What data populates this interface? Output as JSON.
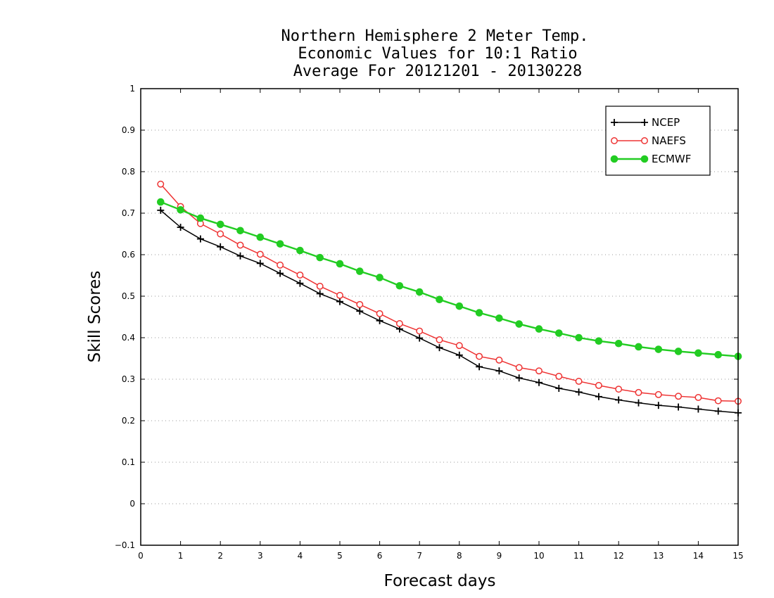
{
  "chart_data": {
    "type": "line",
    "title": [
      "Northern Hemisphere 2 Meter Temp.",
      "Economic Values for 10:1 Ratio",
      "Average For 20121201 - 20130228"
    ],
    "xlabel": "Forecast days",
    "ylabel": "Skill Scores",
    "xlim": [
      0,
      15
    ],
    "ylim": [
      -0.1,
      1
    ],
    "xticks": [
      0,
      1,
      2,
      3,
      4,
      5,
      6,
      7,
      8,
      9,
      10,
      11,
      12,
      13,
      14,
      15
    ],
    "xtick_labels": [
      "0",
      "1",
      "2",
      "3",
      "4",
      "5",
      "6",
      "7",
      "8",
      "9",
      "10",
      "11",
      "12",
      "13",
      "14",
      "15"
    ],
    "yticks": [
      -0.1,
      0,
      0.1,
      0.2,
      0.3,
      0.4,
      0.5,
      0.6,
      0.7,
      0.8,
      0.9,
      1
    ],
    "ytick_labels": [
      "−0.1",
      "0",
      "0.1",
      "0.2",
      "0.3",
      "0.4",
      "0.5",
      "0.6",
      "0.7",
      "0.8",
      "0.9",
      "1"
    ],
    "grid": "horizontal dotted",
    "legend_position": "top-right",
    "x": [
      0.5,
      1,
      1.5,
      2,
      2.5,
      3,
      3.5,
      4,
      4.5,
      5,
      5.5,
      6,
      6.5,
      7,
      7.5,
      8,
      8.5,
      9,
      9.5,
      10,
      10.5,
      11,
      11.5,
      12,
      12.5,
      13,
      13.5,
      14,
      14.5,
      15
    ],
    "series": [
      {
        "name": "NCEP",
        "color": "#000000",
        "marker": "plus",
        "values": [
          0.707,
          0.666,
          0.638,
          0.619,
          0.597,
          0.579,
          0.555,
          0.531,
          0.506,
          0.487,
          0.464,
          0.441,
          0.421,
          0.399,
          0.376,
          0.358,
          0.33,
          0.32,
          0.303,
          0.292,
          0.278,
          0.269,
          0.258,
          0.25,
          0.243,
          0.237,
          0.233,
          0.228,
          0.223,
          0.219
        ]
      },
      {
        "name": "NAEFS",
        "color": "#ee3333",
        "marker": "open-circle",
        "values": [
          0.77,
          0.716,
          0.675,
          0.65,
          0.623,
          0.601,
          0.575,
          0.551,
          0.524,
          0.502,
          0.48,
          0.458,
          0.434,
          0.416,
          0.395,
          0.381,
          0.355,
          0.346,
          0.328,
          0.32,
          0.307,
          0.295,
          0.285,
          0.276,
          0.268,
          0.263,
          0.259,
          0.256,
          0.248,
          0.247
        ]
      },
      {
        "name": "ECMWF",
        "color": "#22cc22",
        "marker": "filled-circle",
        "values": [
          0.727,
          0.708,
          0.688,
          0.673,
          0.658,
          0.642,
          0.626,
          0.61,
          0.593,
          0.578,
          0.56,
          0.545,
          0.525,
          0.51,
          0.492,
          0.476,
          0.46,
          0.447,
          0.433,
          0.421,
          0.411,
          0.4,
          0.392,
          0.386,
          0.378,
          0.372,
          0.367,
          0.363,
          0.359,
          0.355
        ]
      }
    ]
  }
}
